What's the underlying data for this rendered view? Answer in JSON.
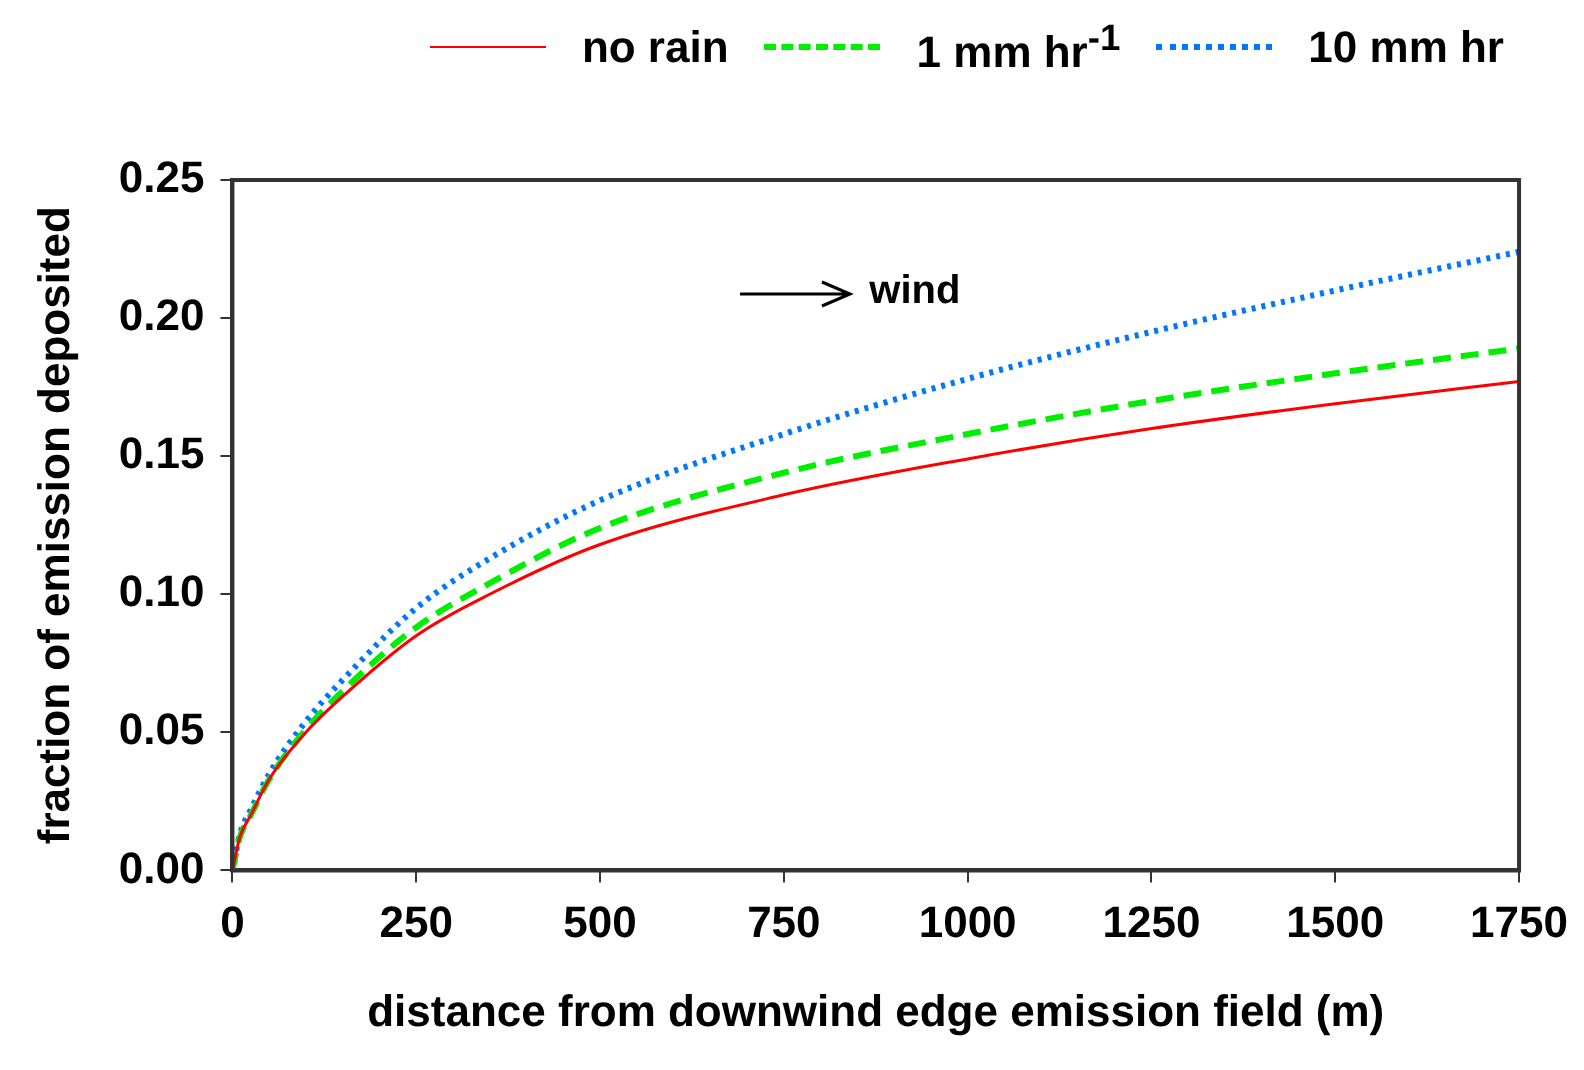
{
  "chart_data": {
    "type": "line",
    "xlabel": "distance from downwind edge emission field (m)",
    "ylabel": "fraction of emission deposited",
    "x": [
      0,
      10,
      25,
      50,
      100,
      150,
      250,
      350,
      500,
      750,
      1000,
      1250,
      1500,
      1750
    ],
    "series": [
      {
        "name": "no rain",
        "color": "#ff0000",
        "line_style": "solid",
        "values": [
          0,
          0.012,
          0.02,
          0.033,
          0.05,
          0.063,
          0.085,
          0.1,
          0.118,
          0.136,
          0.149,
          0.16,
          0.169,
          0.177
        ]
      },
      {
        "name": "1 mm hr$^{-1}$",
        "color": "#00ee00",
        "line_style": "dashed",
        "values": [
          0,
          0.012,
          0.02,
          0.033,
          0.051,
          0.065,
          0.088,
          0.104,
          0.124,
          0.144,
          0.158,
          0.17,
          0.18,
          0.189
        ]
      },
      {
        "name": "10 mm hr",
        "color": "#0077ff",
        "line_style": "dotted",
        "values": [
          0,
          0.013,
          0.022,
          0.035,
          0.054,
          0.069,
          0.095,
          0.113,
          0.134,
          0.158,
          0.178,
          0.195,
          0.21,
          0.224
        ]
      }
    ],
    "xlim": [
      0,
      1750
    ],
    "xticks": [
      0,
      250,
      500,
      750,
      1000,
      1250,
      1500,
      1750
    ],
    "ylim": [
      0,
      0.25
    ],
    "yticks": [
      {
        "value": 0,
        "label": "0.00"
      },
      {
        "value": 0.05,
        "label": "0.05"
      },
      {
        "value": 0.1,
        "label": "0.10"
      },
      {
        "value": 0.15,
        "label": "0.15"
      },
      {
        "value": 0.2,
        "label": "0.20"
      },
      {
        "value": 0.25,
        "label": "0.25"
      }
    ],
    "annotations": [
      "wind"
    ],
    "legend": "top",
    "grid": false,
    "marker": "none"
  }
}
